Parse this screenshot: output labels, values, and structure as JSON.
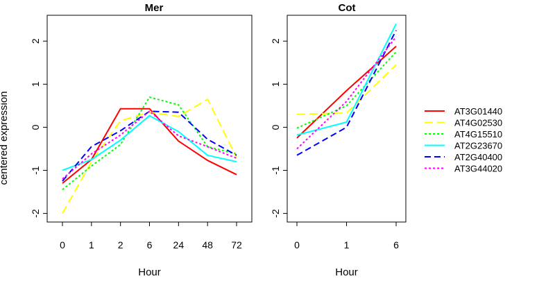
{
  "colors": {
    "AT3G01440": "#ff0000",
    "AT4G02530": "#ffff00",
    "AT4G15510": "#00ff00",
    "AT2G23670": "#00ffff",
    "AT2G40400": "#0000ff",
    "AT3G44020": "#ff00ff"
  },
  "chart_data": [
    {
      "type": "line",
      "title": "Mer",
      "xlabel": "Hour",
      "ylabel": "centered expression",
      "categories": [
        "0",
        "1",
        "2",
        "6",
        "24",
        "48",
        "72"
      ],
      "yticks": [
        -2,
        -1,
        0,
        1,
        2
      ],
      "ylim": [
        -2.2,
        2.6
      ],
      "series": [
        {
          "name": "AT3G01440",
          "line_style": "solid",
          "values": [
            -1.3,
            -0.75,
            0.43,
            0.43,
            -0.32,
            -0.77,
            -1.1
          ]
        },
        {
          "name": "AT4G02530",
          "line_style": "long-dash",
          "values": [
            -2.0,
            -0.8,
            0.15,
            0.35,
            0.25,
            0.65,
            -0.7
          ]
        },
        {
          "name": "AT4G15510",
          "line_style": "dotted",
          "values": [
            -1.45,
            -0.9,
            -0.4,
            0.7,
            0.52,
            -0.45,
            -0.62
          ]
        },
        {
          "name": "AT2G23670",
          "line_style": "solid",
          "values": [
            -1.0,
            -0.75,
            -0.3,
            0.27,
            -0.1,
            -0.65,
            -0.8
          ]
        },
        {
          "name": "AT2G40400",
          "line_style": "dashed",
          "values": [
            -1.25,
            -0.45,
            -0.08,
            0.37,
            0.35,
            -0.28,
            -0.65
          ]
        },
        {
          "name": "AT3G44020",
          "line_style": "dotted",
          "values": [
            -1.2,
            -0.62,
            -0.18,
            0.37,
            -0.2,
            -0.45,
            -0.72
          ]
        }
      ]
    },
    {
      "type": "line",
      "title": "Cot",
      "xlabel": "Hour",
      "ylabel": "",
      "categories": [
        "0",
        "1",
        "6"
      ],
      "yticks": [
        -2,
        -1,
        0,
        1,
        2
      ],
      "ylim": [
        -2.2,
        2.6
      ],
      "series": [
        {
          "name": "AT3G01440",
          "line_style": "solid",
          "values": [
            -0.25,
            0.85,
            1.88
          ]
        },
        {
          "name": "AT4G02530",
          "line_style": "long-dash",
          "values": [
            0.3,
            0.33,
            1.45
          ]
        },
        {
          "name": "AT4G15510",
          "line_style": "dotted",
          "values": [
            -0.02,
            0.5,
            1.75
          ]
        },
        {
          "name": "AT2G23670",
          "line_style": "solid",
          "values": [
            -0.18,
            0.12,
            2.4
          ]
        },
        {
          "name": "AT2G40400",
          "line_style": "dashed",
          "values": [
            -0.65,
            0.0,
            2.25
          ]
        },
        {
          "name": "AT3G44020",
          "line_style": "dotted",
          "values": [
            -0.5,
            0.6,
            2.1
          ]
        }
      ]
    }
  ],
  "legend": {
    "placement": "right",
    "items": [
      "AT3G01440",
      "AT4G02530",
      "AT4G15510",
      "AT2G23670",
      "AT2G40400",
      "AT3G44020"
    ]
  }
}
